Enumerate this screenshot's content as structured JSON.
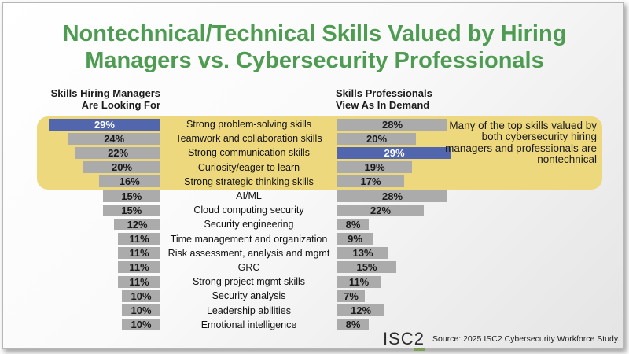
{
  "title": "Nontechnical/Technical Skills Valued by Hiring Managers vs. Cybersecurity Professionals",
  "left_header": {
    "line1": "Skills Hiring Managers",
    "line2": "Are Looking For"
  },
  "right_header": {
    "line1": "Skills Professionals",
    "line2": "View As In Demand"
  },
  "annotation": "Many of the top skills valued by both cybersecurity hiring managers and professionals are nontechnical",
  "footer": {
    "logo": "ISC",
    "logo_digit": "2",
    "source": "Source: 2025 ISC2 Cybersecurity Workforce Study."
  },
  "colors": {
    "title_green": "#4e9b52",
    "bar_gray": "#ababab",
    "bar_blue": "#5266ae",
    "highlight_yellow": "#edd87e",
    "logo_underline_green": "#7ba05b"
  },
  "chart_data": {
    "type": "bar",
    "orientation": "horizontal-butterfly",
    "categories": [
      "Strong problem-solving skills",
      "Teamwork and collaboration skills",
      "Strong communication skills",
      "Curiosity/eager to learn",
      "Strong strategic thinking skills",
      "AI/ML",
      "Cloud computing security",
      "Security engineering",
      "Time management and organization",
      "Risk assessment, analysis and mgmt",
      "GRC",
      "Strong project mgmt skills",
      "Security analysis",
      "Leadership abilities",
      "Emotional intelligence"
    ],
    "series": [
      {
        "name": "Skills Hiring Managers Are Looking For",
        "values": [
          29,
          24,
          22,
          20,
          16,
          15,
          15,
          12,
          11,
          11,
          11,
          11,
          10,
          10,
          10
        ],
        "highlight_index": 0
      },
      {
        "name": "Skills Professionals View As In Demand",
        "values": [
          28,
          20,
          29,
          19,
          17,
          28,
          22,
          8,
          9,
          13,
          15,
          11,
          7,
          12,
          8
        ],
        "highlight_index": 2
      }
    ],
    "value_suffix": "%",
    "highlighted_band_rows": [
      0,
      1,
      2,
      3,
      4
    ],
    "legend_position": "none",
    "grid": false
  }
}
